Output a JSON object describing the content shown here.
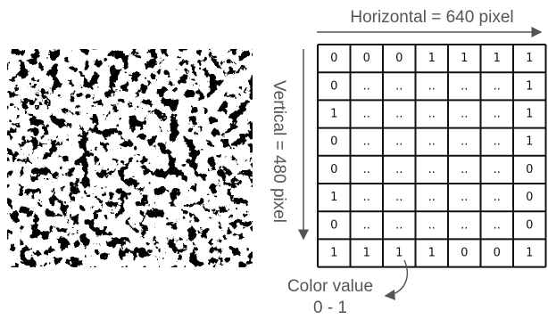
{
  "labels": {
    "horizontal": "Horizontal = 640 pixel",
    "vertical": "Vertical = 480 pixel",
    "color_value": "Color value",
    "color_range": "0 - 1"
  },
  "grid": {
    "rows": [
      [
        "0",
        "0",
        "0",
        "1",
        "1",
        "1",
        "1"
      ],
      [
        "0",
        "..",
        "..",
        "..",
        "..",
        "..",
        "1"
      ],
      [
        "1",
        "..",
        "..",
        "..",
        "..",
        "..",
        "1"
      ],
      [
        "0",
        "..",
        "..",
        "..",
        "..",
        "..",
        "1"
      ],
      [
        "0",
        "..",
        "..",
        "..",
        "..",
        "..",
        "0"
      ],
      [
        "1",
        "..",
        "..",
        "..",
        "..",
        "..",
        "0"
      ],
      [
        "0",
        "..",
        "..",
        "..",
        "..",
        "..",
        "0"
      ],
      [
        "1",
        "1",
        "1",
        "1",
        "0",
        "0",
        "1"
      ]
    ]
  }
}
